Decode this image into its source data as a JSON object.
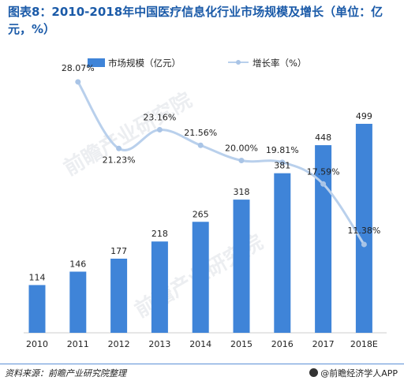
{
  "header": {
    "title": "图表8：2010-2018年中国医疗信息化行业市场规模及增长（单位：亿元，%）"
  },
  "footer": {
    "source": "资料来源：前瞻产业研究院整理",
    "brand": "@前瞻经济学人APP"
  },
  "colors": {
    "bar": "#3f84d8",
    "line": "#b9d0ec",
    "marker": "#a9c4e6",
    "title": "#1a5aa8"
  },
  "chart_data": {
    "type": "bar",
    "categories": [
      "2010",
      "2011",
      "2012",
      "2013",
      "2014",
      "2015",
      "2016",
      "2017",
      "2018E"
    ],
    "series": [
      {
        "name": "市场规模（亿元）",
        "type": "bar",
        "values": [
          114,
          146,
          177,
          218,
          265,
          318,
          381,
          448,
          499
        ]
      },
      {
        "name": "增长率（%）",
        "type": "line",
        "values": [
          null,
          28.07,
          21.23,
          23.16,
          21.56,
          20.0,
          19.81,
          17.59,
          11.38
        ],
        "labels": [
          "",
          "28.07%",
          "21.23%",
          "23.16%",
          "21.56%",
          "20.00%",
          "19.81%",
          "17.59%",
          "11.38%"
        ]
      }
    ],
    "legend": "top-center",
    "grid": false
  }
}
